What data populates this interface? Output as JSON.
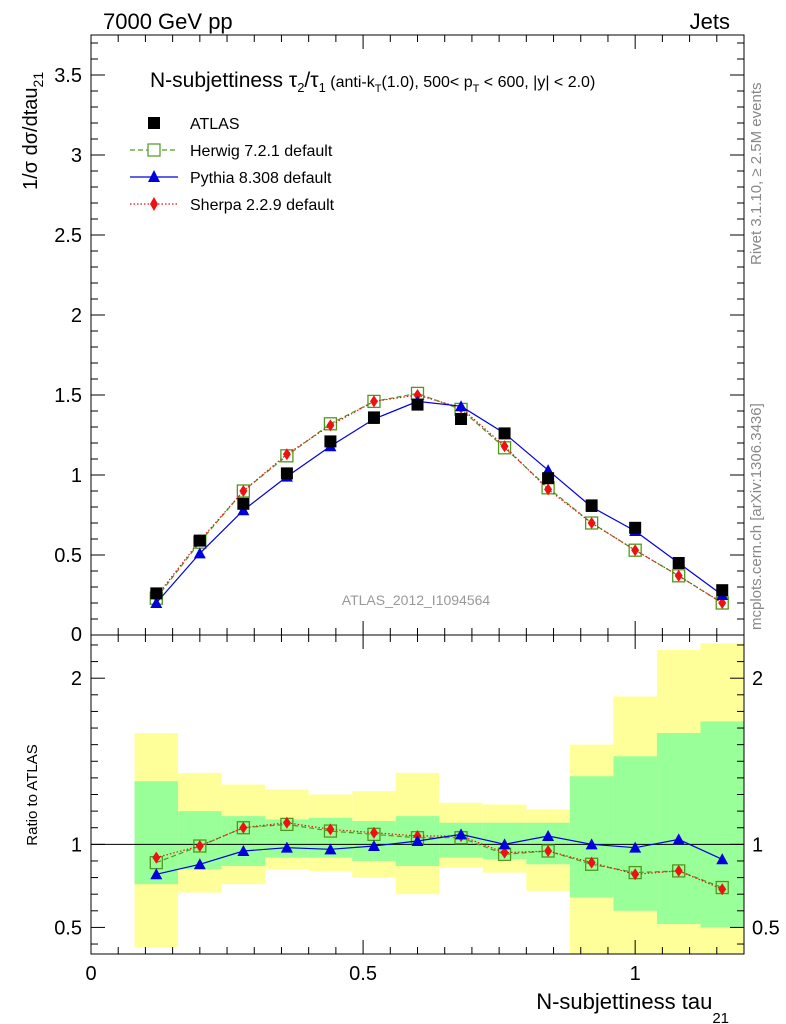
{
  "header": {
    "left": "7000 GeV pp",
    "right": "Jets"
  },
  "side_labels": {
    "rivet": "Rivet 3.1.10, ≥ 2.5M events",
    "mcplots": "mcplots.cern.ch [arXiv:1306.3436]"
  },
  "colors": {
    "atlas": "#000000",
    "herwig": "#4d9a1f",
    "pythia": "#0000dd",
    "sherpa": "#ee1111",
    "band_yellow": "#ffff99",
    "band_green": "#99ff99"
  },
  "chart_data": [
    {
      "type": "line",
      "title": "N-subjettiness τ₂/τ₁ (anti-kₜ(1.0), 500< pₜ < 600, |y| < 2.0)",
      "title_parts": {
        "main": "N-subjettiness ",
        "tau": "τ",
        "sub2": "2",
        "slash": "/",
        "sub1": "1",
        "rest_a": " (anti-k",
        "subT": "T",
        "rest_b": "(1.0), 500< p",
        "rest_c": " < 600, |y| < 2.0)"
      },
      "ylabel": "1/σ dσ/dtau",
      "ylabel_sub": "21",
      "watermark": "ATLAS_2012_I1094564",
      "xlim": [
        0,
        1.2
      ],
      "ylim": [
        0,
        3.75
      ],
      "yticks": [
        0.5,
        1,
        1.5,
        2,
        2.5,
        3,
        3.5
      ],
      "ytick_labels": [
        "0.5",
        "1",
        "1.5",
        "2",
        "2.5",
        "3",
        "3.5"
      ],
      "ytick_zero_label": "0",
      "legend_position": "top-left",
      "x": [
        0.12,
        0.2,
        0.28,
        0.36,
        0.44,
        0.52,
        0.6,
        0.68,
        0.76,
        0.84,
        0.92,
        1.0,
        1.08,
        1.16
      ],
      "series": [
        {
          "name": "ATLAS",
          "marker": "square",
          "values": [
            0.26,
            0.59,
            0.82,
            1.01,
            1.21,
            1.36,
            1.44,
            1.35,
            1.26,
            0.98,
            0.81,
            0.67,
            0.45,
            0.28
          ]
        },
        {
          "name": "Herwig 7.2.1 default",
          "marker": "open-square",
          "values": [
            0.23,
            0.58,
            0.9,
            1.12,
            1.32,
            1.46,
            1.51,
            1.41,
            1.17,
            0.92,
            0.7,
            0.53,
            0.37,
            0.2
          ]
        },
        {
          "name": "Pythia 8.308 default",
          "marker": "triangle",
          "values": [
            0.2,
            0.51,
            0.78,
            0.99,
            1.18,
            1.35,
            1.46,
            1.43,
            1.26,
            1.03,
            0.8,
            0.65,
            0.45,
            0.25
          ]
        },
        {
          "name": "Sherpa 2.2.9 default",
          "marker": "diamond",
          "values": [
            0.24,
            0.59,
            0.9,
            1.13,
            1.31,
            1.46,
            1.5,
            1.42,
            1.18,
            0.91,
            0.7,
            0.53,
            0.37,
            0.2
          ]
        }
      ]
    },
    {
      "type": "line",
      "ylabel": "Ratio to ATLAS",
      "xlabel": "N-subjettiness tau",
      "xlabel_sub": "21",
      "xlim": [
        0,
        1.2
      ],
      "ylim": [
        0.34,
        2.26
      ],
      "yticks": [
        0.5,
        1,
        2
      ],
      "ytick_labels": [
        "0.5",
        "1",
        "2"
      ],
      "xticks": [
        0,
        0.5,
        1
      ],
      "xtick_labels": [
        "0",
        "0.5",
        "1"
      ],
      "bands": {
        "edges": [
          0.08,
          0.16,
          0.24,
          0.32,
          0.4,
          0.48,
          0.56,
          0.64,
          0.72,
          0.8,
          0.88,
          0.96,
          1.04,
          1.12,
          1.2
        ],
        "yellow_low": [
          0.38,
          0.71,
          0.76,
          0.85,
          0.84,
          0.8,
          0.7,
          0.86,
          0.83,
          0.72,
          0.2,
          0.2,
          0.2,
          0.2
        ],
        "yellow_high": [
          1.67,
          1.43,
          1.36,
          1.33,
          1.3,
          1.32,
          1.43,
          1.25,
          1.24,
          1.21,
          1.6,
          1.89,
          2.17,
          2.21
        ],
        "green_low": [
          0.76,
          0.85,
          0.87,
          0.92,
          0.92,
          0.9,
          0.87,
          0.92,
          0.91,
          0.88,
          0.68,
          0.6,
          0.52,
          0.5
        ],
        "green_high": [
          1.38,
          1.2,
          1.17,
          1.15,
          1.16,
          1.14,
          1.17,
          1.13,
          1.13,
          1.13,
          1.41,
          1.53,
          1.67,
          1.74
        ]
      },
      "series": [
        {
          "name": "Herwig 7.2.1 default",
          "marker": "open-square",
          "values": [
            0.89,
            0.99,
            1.1,
            1.12,
            1.08,
            1.06,
            1.04,
            1.04,
            0.94,
            0.96,
            0.88,
            0.83,
            0.84,
            0.74
          ]
        },
        {
          "name": "Pythia 8.308 default",
          "marker": "triangle",
          "values": [
            0.82,
            0.88,
            0.96,
            0.98,
            0.97,
            0.99,
            1.02,
            1.06,
            1.0,
            1.05,
            1.0,
            0.98,
            1.03,
            0.91
          ]
        },
        {
          "name": "Sherpa 2.2.9 default",
          "marker": "diamond",
          "values": [
            0.92,
            0.99,
            1.1,
            1.13,
            1.09,
            1.07,
            1.05,
            1.05,
            0.95,
            0.96,
            0.89,
            0.82,
            0.84,
            0.73
          ]
        }
      ]
    }
  ]
}
